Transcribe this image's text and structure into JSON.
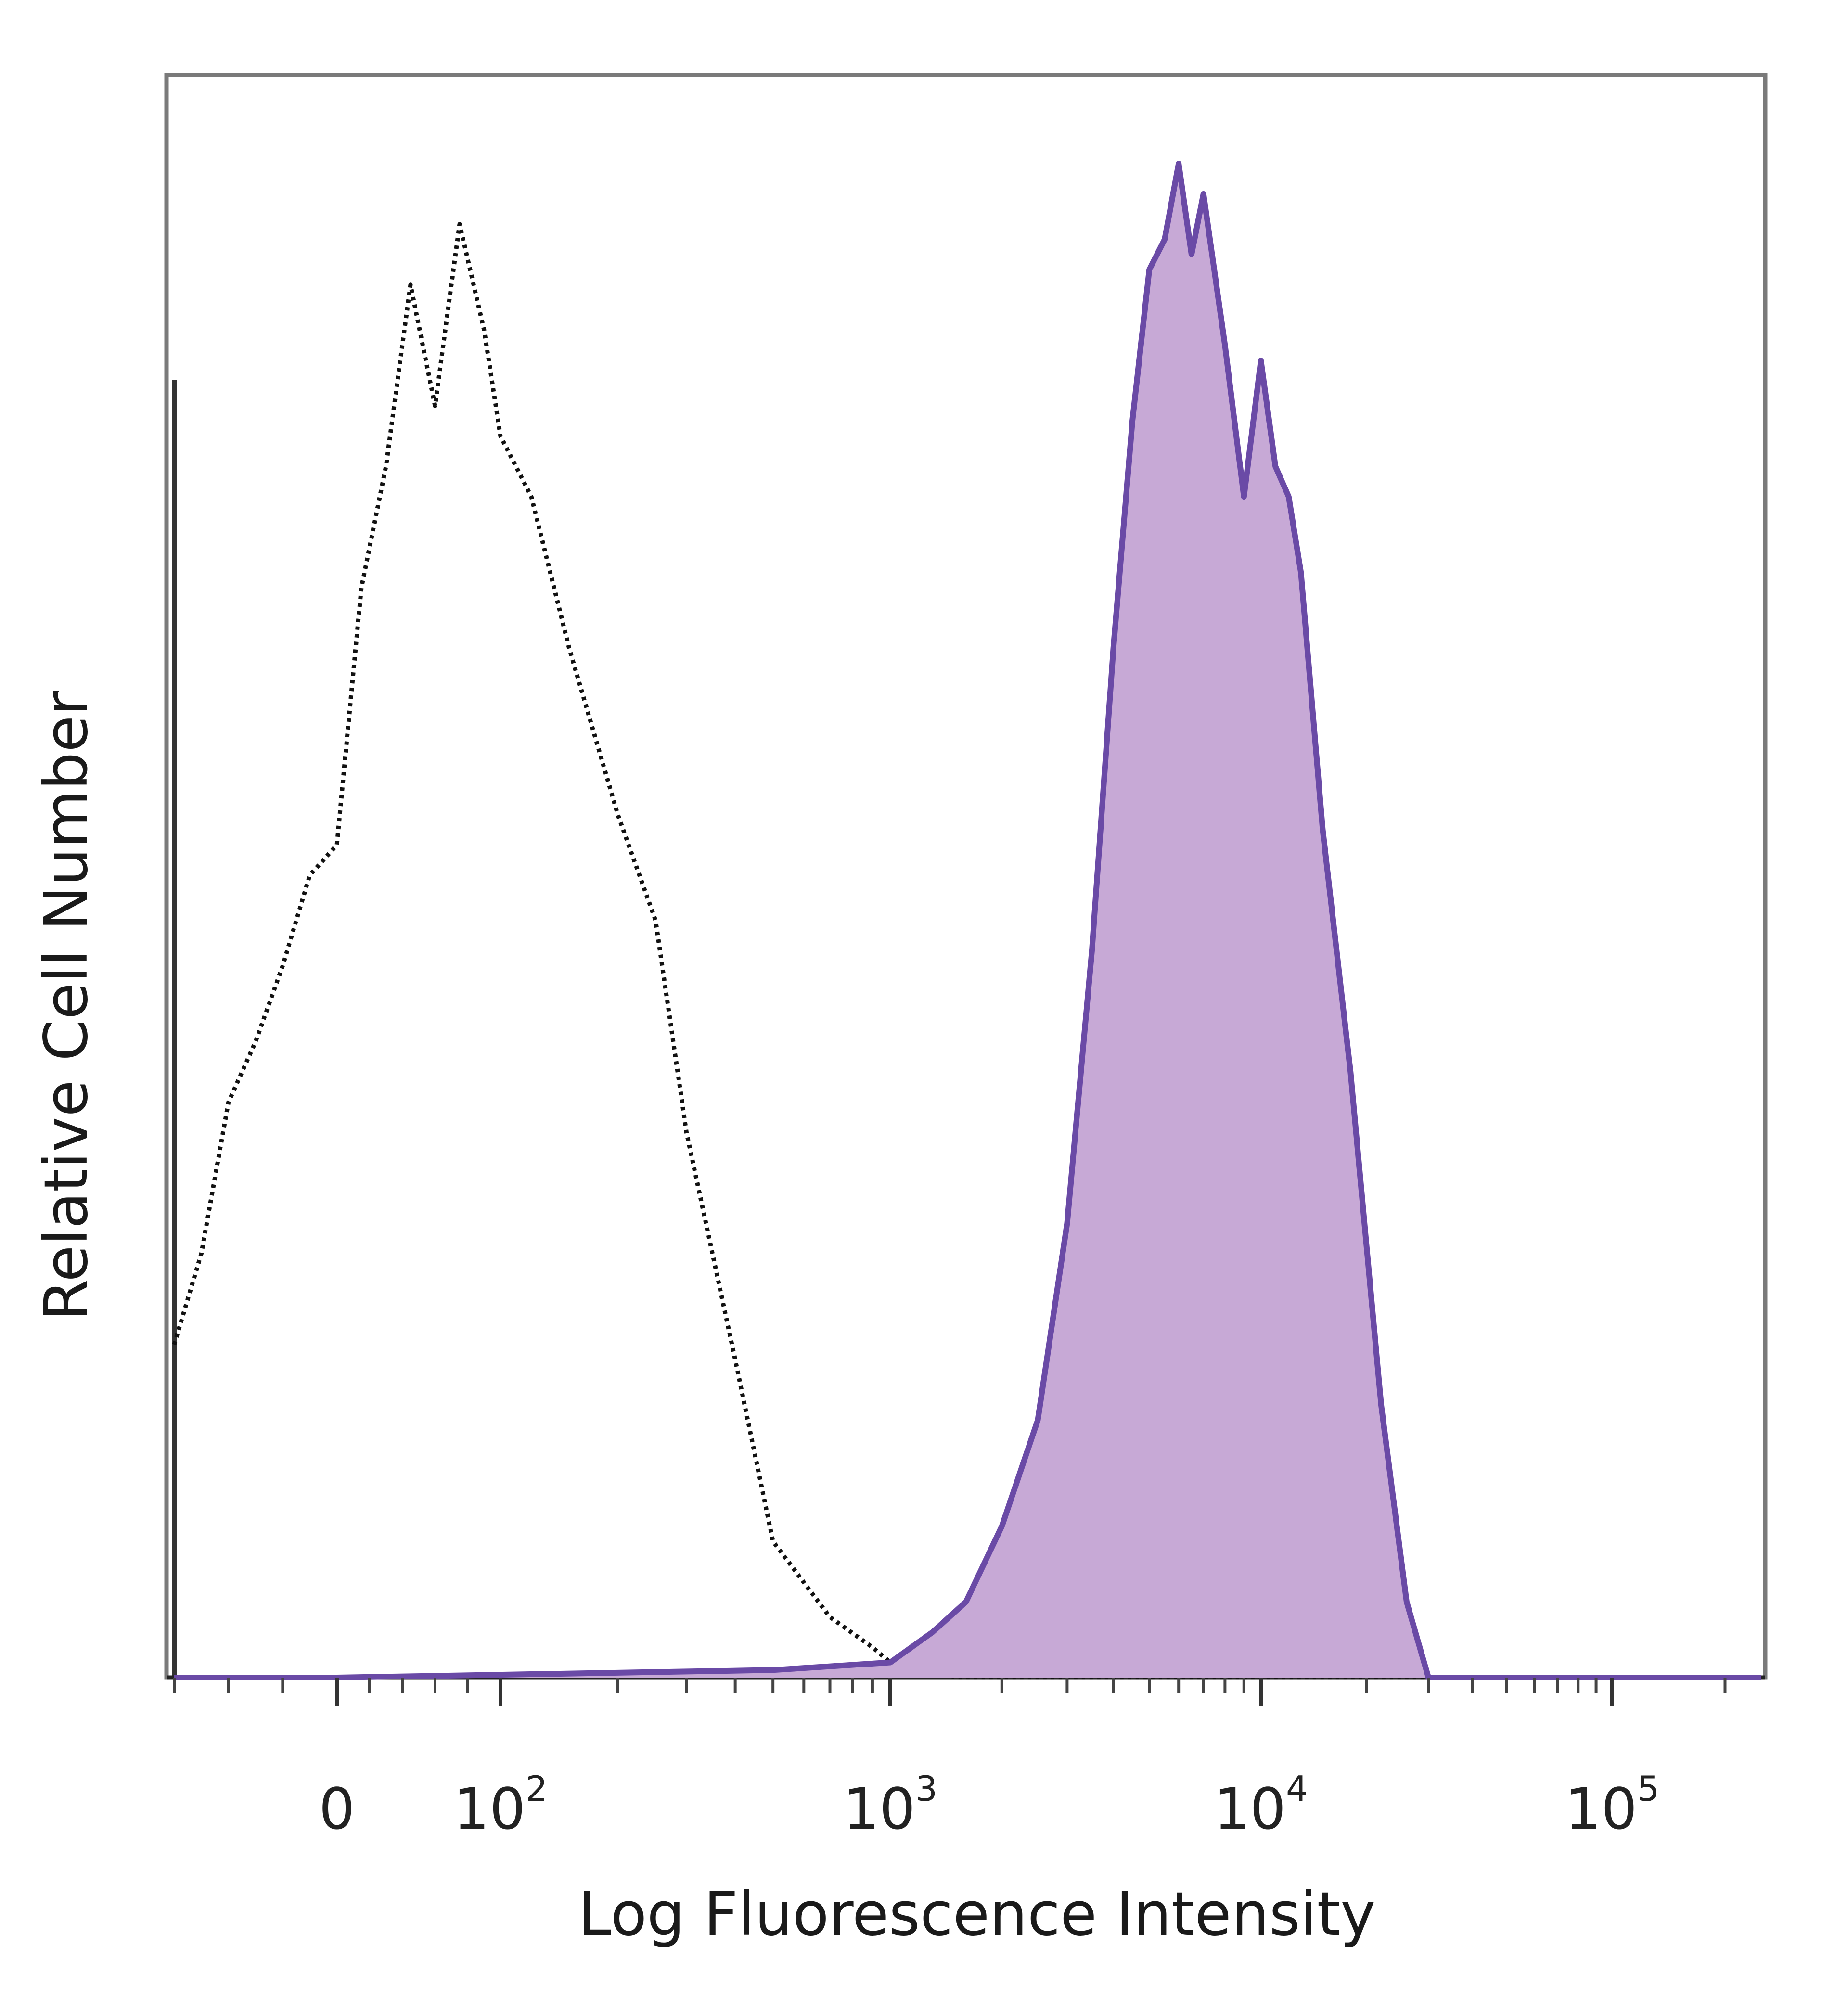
{
  "chart_data": {
    "type": "area",
    "title": "",
    "xlabel": "Log Fluorescence Intensity",
    "ylabel": "Relative Cell Number",
    "x_scale": "biexponential",
    "xlim": [
      -300,
      250000
    ],
    "ylim": [
      0,
      100
    ],
    "grid": false,
    "legend": "none",
    "x_tick_labels": [
      {
        "base": "0",
        "exp": ""
      },
      {
        "base": "10",
        "exp": "2"
      },
      {
        "base": "10",
        "exp": "3"
      },
      {
        "base": "10",
        "exp": "4"
      },
      {
        "base": "10",
        "exp": "5"
      }
    ],
    "x_tick_values": [
      0,
      100,
      1000,
      10000,
      100000
    ],
    "series": [
      {
        "style": "dotted-outline",
        "color": "#111111",
        "x": [
          -300,
          -250,
          -200,
          -150,
          -100,
          -50,
          0,
          15,
          30,
          45,
          60,
          75,
          90,
          100,
          120,
          150,
          200,
          250,
          300,
          400,
          500,
          700,
          900,
          1000,
          1200,
          1500,
          3000,
          10000,
          100000,
          250000
        ],
        "y": [
          22,
          28,
          38,
          42,
          47,
          53,
          55,
          72,
          80,
          92,
          84,
          96,
          89,
          82,
          78,
          68,
          57,
          50,
          36,
          21,
          9,
          4,
          2,
          1,
          1,
          0,
          0,
          0,
          0,
          0
        ]
      },
      {
        "style": "filled",
        "color": "#6a4aa6",
        "fill": "#c7a9d6",
        "x": [
          -300,
          0,
          500,
          1000,
          1300,
          1600,
          2000,
          2500,
          3000,
          3500,
          4000,
          4500,
          5000,
          5500,
          6000,
          6500,
          7000,
          8000,
          9000,
          10000,
          11000,
          12000,
          13000,
          15000,
          18000,
          22000,
          26000,
          30000,
          100000,
          250000
        ],
        "y": [
          0,
          0,
          0.5,
          1,
          3,
          5,
          10,
          17,
          30,
          48,
          68,
          83,
          93,
          95,
          100,
          94,
          98,
          88,
          78,
          87,
          80,
          78,
          73,
          56,
          40,
          18,
          5,
          0,
          0,
          0
        ]
      }
    ]
  }
}
